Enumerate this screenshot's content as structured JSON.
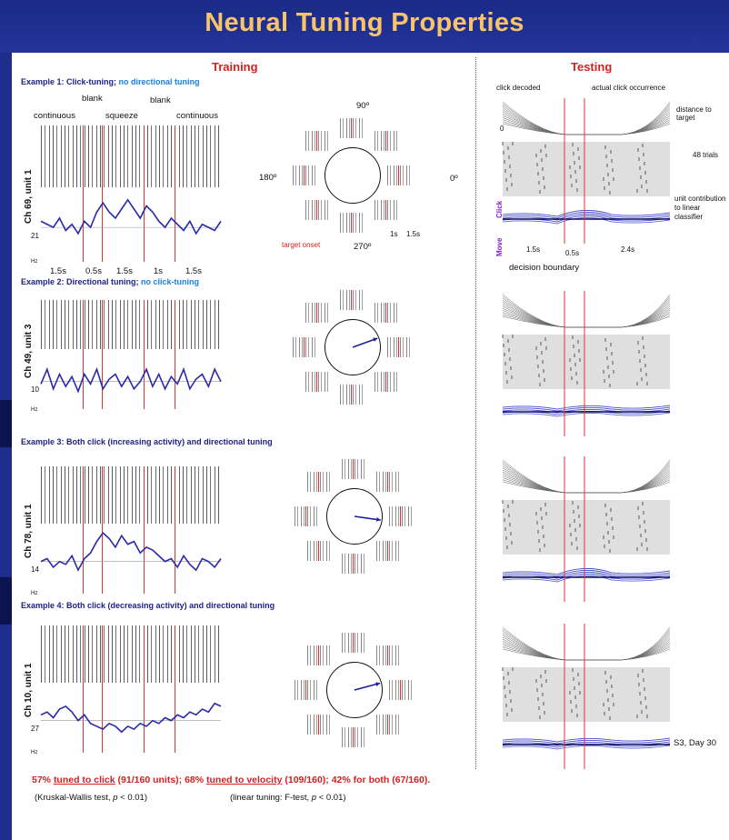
{
  "title": "Neural Tuning Properties",
  "headers": {
    "training": "Training",
    "testing": "Testing"
  },
  "examples": [
    {
      "label_a": "Example 1: Click-tuning; ",
      "label_b": "no directional tuning",
      "unit": "Ch 69, unit 1",
      "baseline": "21",
      "hz": "Hz",
      "trace": [
        0.55,
        0.5,
        0.45,
        0.6,
        0.4,
        0.5,
        0.35,
        0.55,
        0.45,
        0.7,
        0.85,
        0.7,
        0.6,
        0.75,
        0.9,
        0.75,
        0.6,
        0.8,
        0.7,
        0.55,
        0.45,
        0.6,
        0.5,
        0.4,
        0.55,
        0.35,
        0.5,
        0.45,
        0.4,
        0.55
      ]
    },
    {
      "label_a": "Example 2: Directional tuning; ",
      "label_b": "no click-tuning",
      "unit": "Ch 49, unit 3",
      "baseline": "10",
      "hz": "Hz",
      "trace": [
        0.4,
        0.7,
        0.3,
        0.6,
        0.35,
        0.55,
        0.25,
        0.6,
        0.4,
        0.7,
        0.3,
        0.5,
        0.6,
        0.35,
        0.55,
        0.3,
        0.45,
        0.7,
        0.35,
        0.6,
        0.3,
        0.55,
        0.4,
        0.7,
        0.3,
        0.5,
        0.6,
        0.35,
        0.7,
        0.45
      ]
    },
    {
      "label_a": "Example 3: Both click (increasing activity) and directional tuning",
      "label_b": "",
      "unit": "Ch 78, unit 1",
      "baseline": "14",
      "hz": "Hz",
      "trace": [
        0.45,
        0.5,
        0.35,
        0.45,
        0.4,
        0.55,
        0.3,
        0.5,
        0.6,
        0.8,
        0.95,
        0.85,
        0.7,
        0.9,
        0.75,
        0.8,
        0.6,
        0.7,
        0.65,
        0.55,
        0.45,
        0.5,
        0.35,
        0.55,
        0.4,
        0.3,
        0.5,
        0.45,
        0.35,
        0.5
      ]
    },
    {
      "label_a": "Example 4: Both click (decreasing activity) and directional tuning",
      "label_b": "",
      "unit": "Ch 10, unit 1",
      "baseline": "27",
      "hz": "Hz",
      "trace": [
        0.55,
        0.6,
        0.5,
        0.65,
        0.7,
        0.6,
        0.45,
        0.55,
        0.4,
        0.35,
        0.3,
        0.4,
        0.35,
        0.25,
        0.35,
        0.3,
        0.4,
        0.35,
        0.45,
        0.4,
        0.5,
        0.45,
        0.55,
        0.5,
        0.6,
        0.55,
        0.65,
        0.6,
        0.75,
        0.7
      ]
    }
  ],
  "ex1_annot": {
    "continuous1": "continuous",
    "blank1": "blank",
    "squeeze": "squeeze",
    "blank2": "blank",
    "continuous2": "continuous",
    "t1": "1.5s",
    "t2": "0.5s",
    "t3": "1.5s",
    "t4": "1s",
    "t5": "1.5s"
  },
  "polar": {
    "deg90": "90º",
    "deg180": "180º",
    "deg0": "0º",
    "deg270": "270º",
    "target_onset": "target onset",
    "t_1s": "1s",
    "t_15s": "1.5s"
  },
  "arrows": [
    null,
    {
      "angle": -20
    },
    {
      "angle": 8
    },
    {
      "angle": -15
    }
  ],
  "testing_annot": {
    "click_decoded": "click decoded",
    "actual_click": "actual click occurrence",
    "distance": "distance to target",
    "trials": "48 trials",
    "unit_contrib": "unit contribution to linear classifier",
    "click": "Click",
    "move": "Move",
    "decision": "decision boundary",
    "t1": "1.5s",
    "t2": "0.5s",
    "t3": "2.4s",
    "zero": "0"
  },
  "subject": "S3, Day 30",
  "summary": {
    "a": "57% ",
    "b": "tuned to click",
    "c": " (91/160 units); 68% ",
    "d": "tuned to velocity",
    "e": " (109/160); 42% for both (67/160)."
  },
  "footnote_left_a": "(Kruskal-Wallis test, ",
  "footnote_left_b": "p",
  "footnote_left_c": " < 0.01)",
  "footnote_right_a": "(linear tuning: F-test, ",
  "footnote_right_b": "p",
  "footnote_right_c": " < 0.01)",
  "colors": {
    "banner": "#1a2a86",
    "title": "#f7c46a",
    "accent_red": "#d42020",
    "accent_blue": "#1a7fe0",
    "navy": "#1b1f86",
    "trace": "#2a2aa8"
  }
}
